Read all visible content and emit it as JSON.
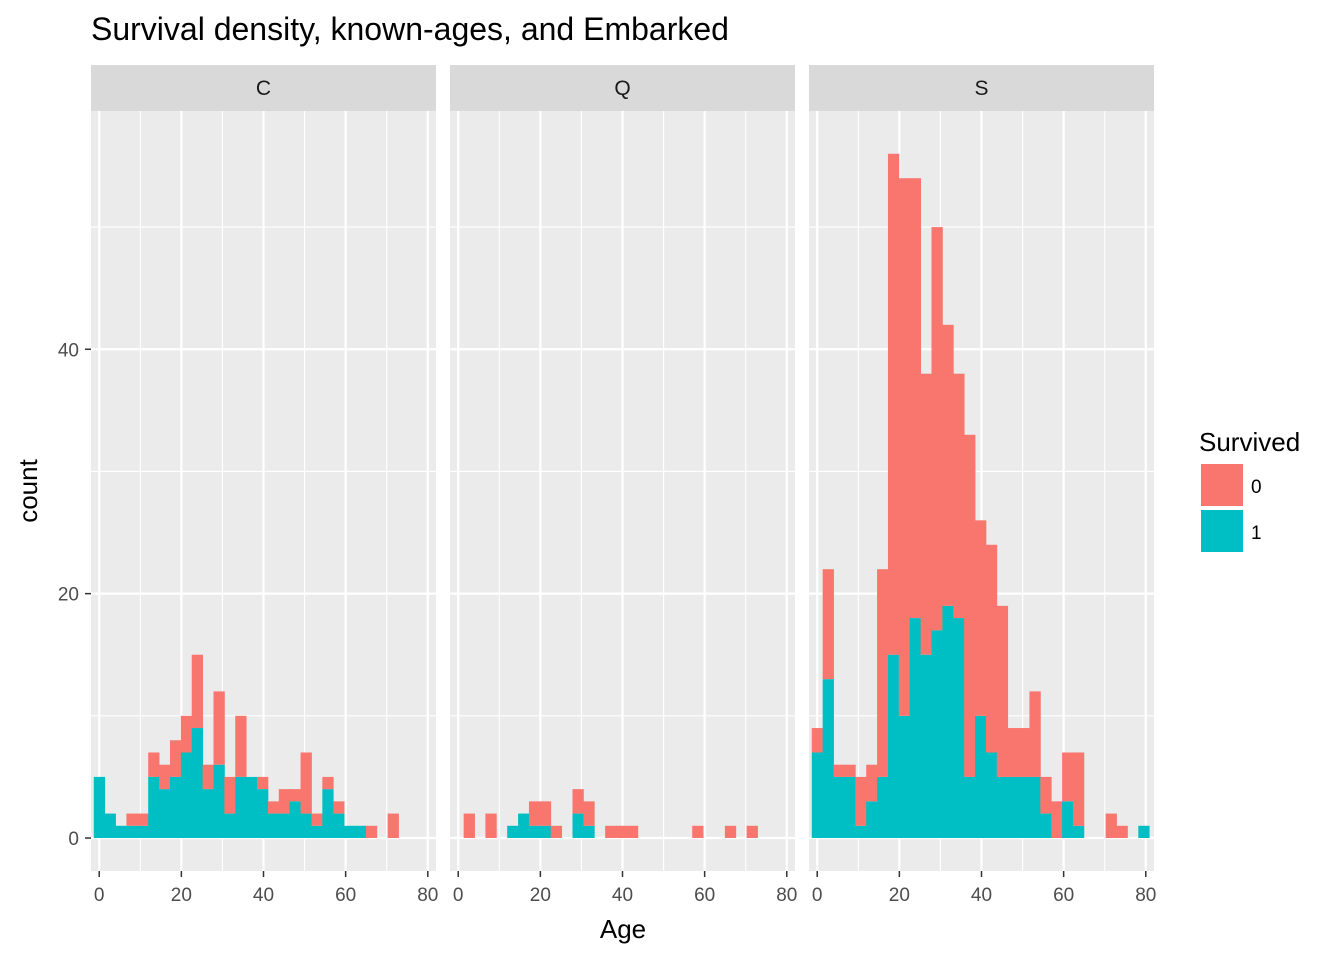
{
  "chart_data": {
    "type": "bar",
    "subtype": "stacked-histogram-faceted",
    "title": "Survival density, known-ages, and Embarked",
    "xlabel": "Age",
    "ylabel": "count",
    "xlim": [
      -2,
      82
    ],
    "ylim": [
      -2.7,
      59.5
    ],
    "x_ticks": [
      0,
      20,
      40,
      60,
      80
    ],
    "x_tick_labels": [
      "0",
      "20",
      "40",
      "60",
      "80"
    ],
    "y_ticks": [
      0,
      20,
      40
    ],
    "y_tick_labels": [
      "0",
      "20",
      "40"
    ],
    "bin_width": 2.65,
    "grid": true,
    "legend": {
      "title": "Survived",
      "position": "right",
      "entries": [
        {
          "label": "0",
          "color": "#F8766D"
        },
        {
          "label": "1",
          "color": "#00BFC4"
        }
      ]
    },
    "colors": {
      "survived_0": "#F8766D",
      "survived_1": "#00BFC4",
      "panel_background": "#EBEBEB",
      "strip_background": "#D9D9D9",
      "grid_major": "#FFFFFF"
    },
    "facets": [
      {
        "label": "C",
        "bin_centers": [
          0,
          2.65,
          5.3,
          7.95,
          10.6,
          13.25,
          15.9,
          18.55,
          21.2,
          23.85,
          26.5,
          29.15,
          31.8,
          34.45,
          37.1,
          39.75,
          42.4,
          45.05,
          47.7,
          50.35,
          53.0,
          55.65,
          58.3,
          60.95,
          63.6,
          66.25,
          68.9,
          71.55
        ],
        "survived_1": [
          5,
          2,
          1,
          1,
          1,
          5,
          4,
          5,
          7,
          9,
          4,
          6,
          2,
          5,
          5,
          4,
          2,
          2,
          3,
          2,
          1,
          4,
          2,
          1,
          1,
          0,
          0,
          0
        ],
        "survived_0": [
          0,
          0,
          0,
          1,
          1,
          2,
          2,
          3,
          3,
          6,
          2,
          6,
          3,
          5,
          0,
          1,
          1,
          2,
          1,
          5,
          1,
          1,
          1,
          0,
          0,
          1,
          0,
          2
        ]
      },
      {
        "label": "Q",
        "bin_centers": [
          0,
          2.65,
          5.3,
          7.95,
          10.6,
          13.25,
          15.9,
          18.55,
          21.2,
          23.85,
          26.5,
          29.15,
          31.8,
          34.45,
          37.1,
          39.75,
          42.4,
          45.05,
          47.7,
          50.35,
          53.0,
          55.65,
          58.3,
          60.95,
          63.6,
          66.25,
          68.9,
          71.55
        ],
        "survived_1": [
          0,
          0,
          0,
          0,
          0,
          1,
          2,
          1,
          1,
          0,
          0,
          2,
          1,
          0,
          0,
          0,
          0,
          0,
          0,
          0,
          0,
          0,
          0,
          0,
          0,
          0,
          0,
          0
        ],
        "survived_0": [
          0,
          2,
          0,
          2,
          0,
          0,
          0,
          2,
          2,
          1,
          0,
          2,
          2,
          0,
          1,
          1,
          1,
          0,
          0,
          0,
          0,
          0,
          1,
          0,
          0,
          1,
          0,
          1
        ]
      },
      {
        "label": "S",
        "bin_centers": [
          0,
          2.65,
          5.3,
          7.95,
          10.6,
          13.25,
          15.9,
          18.55,
          21.2,
          23.85,
          26.5,
          29.15,
          31.8,
          34.45,
          37.1,
          39.75,
          42.4,
          45.05,
          47.7,
          50.35,
          53.0,
          55.65,
          58.3,
          60.95,
          63.6,
          66.25,
          68.9,
          71.55,
          74.2,
          76.85,
          79.5
        ],
        "survived_1": [
          7,
          13,
          5,
          5,
          1,
          3,
          5,
          15,
          10,
          18,
          15,
          17,
          19,
          18,
          5,
          10,
          7,
          5,
          5,
          5,
          5,
          2,
          0,
          3,
          1,
          0,
          0,
          0,
          0,
          0,
          1
        ],
        "survived_0": [
          2,
          9,
          1,
          1,
          4,
          3,
          17,
          41,
          44,
          36,
          23,
          33,
          23,
          20,
          28,
          16,
          17,
          14,
          4,
          4,
          7,
          3,
          3,
          4,
          6,
          0,
          0,
          2,
          1,
          0,
          0
        ]
      }
    ]
  }
}
